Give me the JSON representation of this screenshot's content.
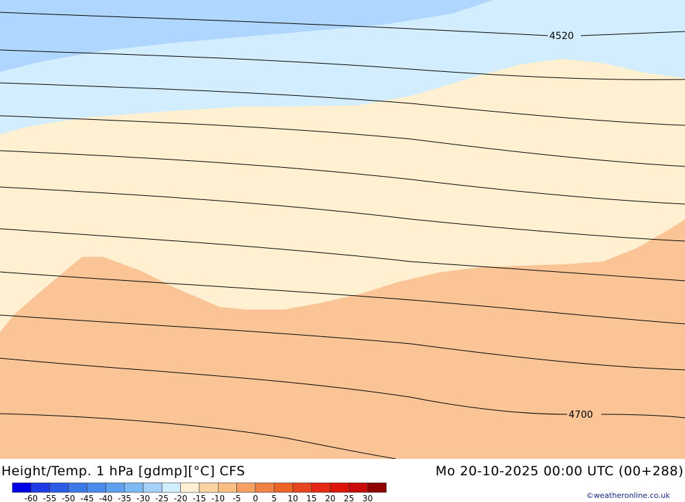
{
  "title": "Height/Temp. 1 hPa [gdmp][°C] CFS",
  "datetime": "Mo 20-10-2025 00:00 UTC (00+288)",
  "credit": "©weatheronline.co.uk",
  "contour_labels": [
    "4520",
    "4700"
  ],
  "legend": {
    "colors": [
      "#0000e6",
      "#1e3ce6",
      "#2d5ae6",
      "#3c78e6",
      "#4b8cea",
      "#5fa0ee",
      "#7db9f2",
      "#a5d0f8",
      "#d2eefe",
      "#fff0d2",
      "#fbd4a4",
      "#f9be84",
      "#f6a064",
      "#f08246",
      "#ec6428",
      "#e6461e",
      "#e62814",
      "#dc140a",
      "#c80a0a",
      "#8c0000"
    ],
    "ticks": [
      "-60",
      "-55",
      "-50",
      "-45",
      "-40",
      "-35",
      "-30",
      "-25",
      "-20",
      "-15",
      "-10",
      "-5",
      "0",
      "5",
      "10",
      "15",
      "20",
      "25",
      "30"
    ]
  },
  "palette": {
    "band_m35": "#afd6ff",
    "band_m30": "#d2eefe",
    "band_m15": "#fff0d2",
    "band_m10": "#fbc496"
  }
}
